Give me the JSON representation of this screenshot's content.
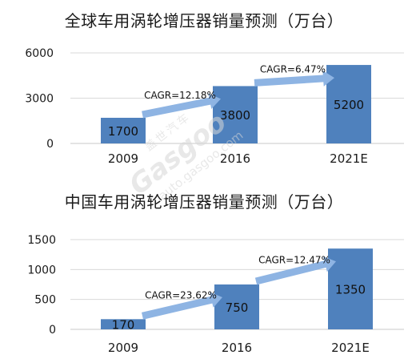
{
  "watermark": {
    "cn": "盖世汽车",
    "main": "Gasgoo",
    "sub": "auto.gasgoo.com"
  },
  "chart_data": [
    {
      "type": "bar",
      "title": "全球车用涡轮增压器销量预测（万台）",
      "categories": [
        "2009",
        "2016",
        "2021E"
      ],
      "values": [
        1700,
        3800,
        5200
      ],
      "data_labels": [
        "1700",
        "3800",
        "5200"
      ],
      "yticks": [
        "0",
        "3000",
        "6000"
      ],
      "ylim": [
        0,
        6000
      ],
      "grid": true,
      "bar_color": "#4f81bd",
      "arrow_color": "#8eb4e3",
      "annotations": [
        {
          "text": "CAGR=12.18%",
          "from": 0,
          "to": 1
        },
        {
          "text": "CAGR=6.47%",
          "from": 1,
          "to": 2
        }
      ]
    },
    {
      "type": "bar",
      "title": "中国车用涡轮增压器销量预测（万台）",
      "categories": [
        "2009",
        "2016",
        "2021E"
      ],
      "values": [
        170,
        750,
        1350
      ],
      "data_labels": [
        "170",
        "750",
        "1350"
      ],
      "yticks": [
        "0",
        "500",
        "1000",
        "1500"
      ],
      "ylim": [
        0,
        1500
      ],
      "grid": true,
      "bar_color": "#4f81bd",
      "arrow_color": "#8eb4e3",
      "annotations": [
        {
          "text": "CAGR=23.62%",
          "from": 0,
          "to": 1
        },
        {
          "text": "CAGR=12.47%",
          "from": 1,
          "to": 2
        }
      ]
    }
  ]
}
